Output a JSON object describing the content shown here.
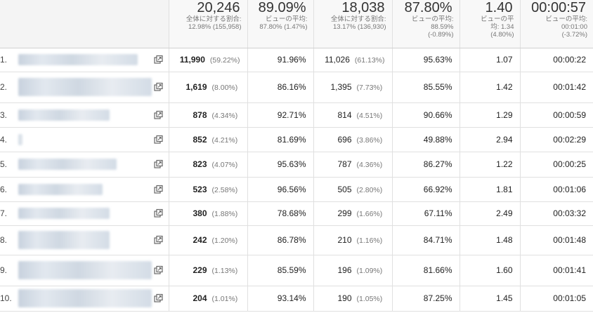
{
  "header": {
    "columns": [
      {
        "total": "20,246",
        "sub": [
          "全体に対する割合:",
          "12.98% (155,958)"
        ]
      },
      {
        "total": "89.09%",
        "sub": [
          "ビューの平均:",
          "87.80% (1.47%)"
        ]
      },
      {
        "total": "18,038",
        "sub": [
          "全体に対する割合:",
          "13.17% (136,930)"
        ]
      },
      {
        "total": "87.80%",
        "sub": [
          "ビューの平均:",
          "88.59%",
          "(-0.89%)"
        ]
      },
      {
        "total": "1.40",
        "sub": [
          "ビューの平",
          "均: 1.34",
          "(4.80%)"
        ]
      },
      {
        "total": "00:00:57",
        "sub": [
          "ビューの平均:",
          "00:01:00",
          "(-3.72%)"
        ]
      }
    ]
  },
  "rows": [
    {
      "index": "1.",
      "c1": "11,990",
      "c1p": "(59.22%)",
      "c2": "91.96%",
      "c3": "11,026",
      "c3p": "(61.13%)",
      "c4": "95.63%",
      "c5": "1.07",
      "c6": "00:00:22"
    },
    {
      "index": "2.",
      "c1": "1,619",
      "c1p": "(8.00%)",
      "c2": "86.16%",
      "c3": "1,395",
      "c3p": "(7.73%)",
      "c4": "85.55%",
      "c5": "1.42",
      "c6": "00:01:42"
    },
    {
      "index": "3.",
      "c1": "878",
      "c1p": "(4.34%)",
      "c2": "92.71%",
      "c3": "814",
      "c3p": "(4.51%)",
      "c4": "90.66%",
      "c5": "1.29",
      "c6": "00:00:59"
    },
    {
      "index": "4.",
      "c1": "852",
      "c1p": "(4.21%)",
      "c2": "81.69%",
      "c3": "696",
      "c3p": "(3.86%)",
      "c4": "49.88%",
      "c5": "2.94",
      "c6": "00:02:29"
    },
    {
      "index": "5.",
      "c1": "823",
      "c1p": "(4.07%)",
      "c2": "95.63%",
      "c3": "787",
      "c3p": "(4.36%)",
      "c4": "86.27%",
      "c5": "1.22",
      "c6": "00:00:25"
    },
    {
      "index": "6.",
      "c1": "523",
      "c1p": "(2.58%)",
      "c2": "96.56%",
      "c3": "505",
      "c3p": "(2.80%)",
      "c4": "66.92%",
      "c5": "1.81",
      "c6": "00:01:06"
    },
    {
      "index": "7.",
      "c1": "380",
      "c1p": "(1.88%)",
      "c2": "78.68%",
      "c3": "299",
      "c3p": "(1.66%)",
      "c4": "67.11%",
      "c5": "2.49",
      "c6": "00:03:32"
    },
    {
      "index": "8.",
      "c1": "242",
      "c1p": "(1.20%)",
      "c2": "86.78%",
      "c3": "210",
      "c3p": "(1.16%)",
      "c4": "84.71%",
      "c5": "1.48",
      "c6": "00:01:48"
    },
    {
      "index": "9.",
      "c1": "229",
      "c1p": "(1.13%)",
      "c2": "85.59%",
      "c3": "196",
      "c3p": "(1.09%)",
      "c4": "81.66%",
      "c5": "1.60",
      "c6": "00:01:41"
    },
    {
      "index": "10.",
      "c1": "204",
      "c1p": "(1.01%)",
      "c2": "93.14%",
      "c3": "190",
      "c3p": "(1.05%)",
      "c4": "87.25%",
      "c5": "1.45",
      "c6": "00:01:05"
    }
  ],
  "icons": {
    "row_link": "external-link-icon"
  },
  "colors": {
    "header_bg": "#f8f8f8",
    "border": "#e0e0e0",
    "muted_text": "#777777"
  }
}
